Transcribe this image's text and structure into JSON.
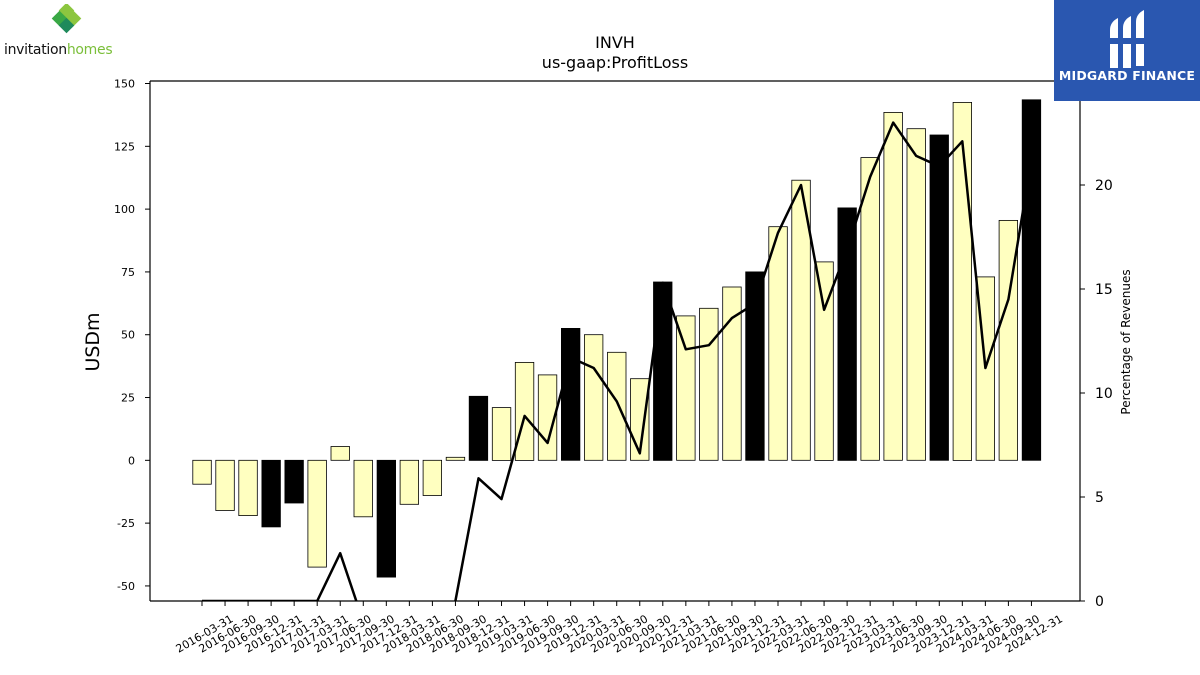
{
  "logos": {
    "left": {
      "name_part1": "invitation",
      "name_part2": "homes",
      "accent_color": "#7bbf3a"
    },
    "right": {
      "name": "MIDGARD FINANCE",
      "background": "#2a57b0"
    }
  },
  "chart_data": {
    "type": "bar",
    "title": "INVH",
    "subtitle": "us-gaap:ProfitLoss",
    "ylabel": "USDm",
    "y2label": "Percentage of Revenues",
    "ylim": [
      -56,
      151
    ],
    "y2lim": [
      0,
      25
    ],
    "yticks": [
      -50,
      -25,
      0,
      25,
      50,
      75,
      100,
      125,
      150
    ],
    "y2ticks": [
      0,
      5,
      10,
      15,
      20
    ],
    "categories": [
      "2016-03-31",
      "2016-06-30",
      "2016-09-30",
      "2016-12-31",
      "2017-01-31",
      "2017-03-31",
      "2017-06-30",
      "2017-09-30",
      "2017-12-31",
      "2018-03-31",
      "2018-06-30",
      "2018-09-30",
      "2018-12-31",
      "2019-03-31",
      "2019-06-30",
      "2019-09-30",
      "2019-12-31",
      "2020-03-31",
      "2020-06-30",
      "2020-09-30",
      "2020-12-31",
      "2021-03-31",
      "2021-06-30",
      "2021-09-30",
      "2021-12-31",
      "2022-03-31",
      "2022-06-30",
      "2022-09-30",
      "2022-12-31",
      "2023-03-31",
      "2023-06-30",
      "2023-09-30",
      "2023-12-31",
      "2024-03-31",
      "2024-06-30",
      "2024-09-30",
      "2024-12-31"
    ],
    "series": [
      {
        "type": "bar",
        "values": [
          -9.5,
          -20,
          -22,
          -26.5,
          -17,
          -42.5,
          5.5,
          -22.5,
          -46.5,
          -17.5,
          -14,
          1.2,
          25.5,
          21,
          39,
          34,
          52.5,
          50,
          43,
          32.5,
          71,
          57.5,
          60.5,
          69,
          75,
          93,
          111.5,
          79,
          100.5,
          120.5,
          138.5,
          132,
          129.5,
          142.5,
          73,
          95.5,
          143.5
        ],
        "annual": [
          false,
          false,
          false,
          true,
          true,
          false,
          false,
          false,
          true,
          false,
          false,
          false,
          true,
          false,
          false,
          false,
          true,
          false,
          false,
          false,
          true,
          false,
          false,
          false,
          true,
          false,
          false,
          false,
          true,
          false,
          false,
          false,
          true,
          false,
          false,
          false,
          true
        ],
        "colors": {
          "quarter": "#ffffc0",
          "annual": "#000000"
        }
      },
      {
        "type": "line",
        "axis": "right",
        "values": [
          0,
          0,
          0,
          0,
          0,
          0,
          2.3,
          -1,
          -1,
          -1,
          -1,
          0,
          5.9,
          4.9,
          8.9,
          7.6,
          11.7,
          11.2,
          9.6,
          7.1,
          15.3,
          12.1,
          12.3,
          13.6,
          14.3,
          17.7,
          20,
          14,
          16.9,
          20.4,
          23,
          21.4,
          20.9,
          22.1,
          11.2,
          14.5,
          21.2
        ],
        "color": "#000000"
      }
    ]
  }
}
